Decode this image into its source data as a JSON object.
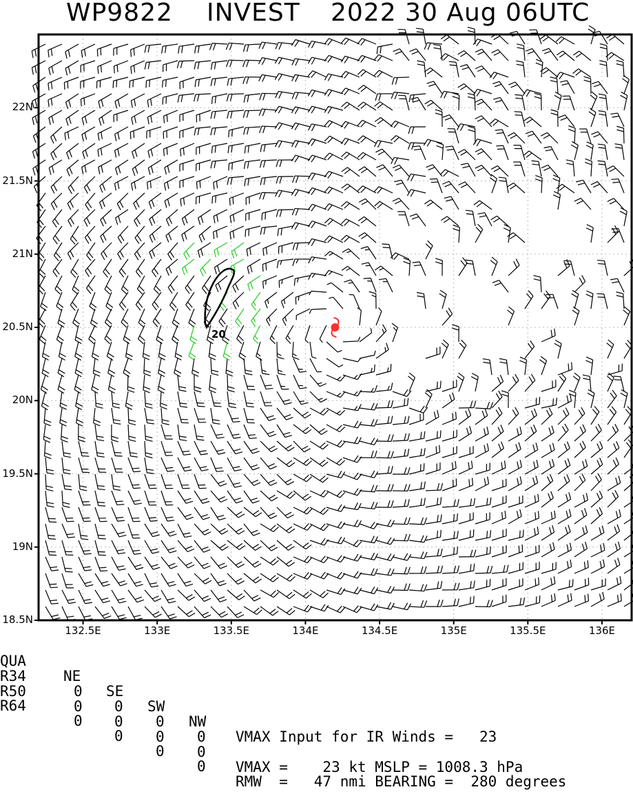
{
  "title": {
    "storm_id": "WP9822",
    "storm_name": "INVEST",
    "datetime": "2022 30 Aug 06UTC"
  },
  "map": {
    "lat_range": [
      18.5,
      22.5
    ],
    "lon_range": [
      132.2,
      136.2
    ],
    "y_ticks": [
      "22N",
      "21.5N",
      "21N",
      "20.5N",
      "20N",
      "19.5N",
      "19N",
      "18.5N"
    ],
    "x_ticks": [
      "132.5E",
      "133E",
      "133.5E",
      "134E",
      "134.5E",
      "135E",
      "135.5E",
      "136E"
    ],
    "center": {
      "lat": 20.5,
      "lon": 134.2
    },
    "center_color": "#ff3030",
    "barb_color": "#000000",
    "highlight_barb_color": "#22cc22",
    "contour_label": "20",
    "grid": true
  },
  "table": {
    "header": [
      "QUA",
      "NE",
      "SE",
      "SW",
      "NW"
    ],
    "rows": [
      {
        "label": "R34",
        "values": [
          "0",
          "0",
          "0",
          "0"
        ]
      },
      {
        "label": "R50",
        "values": [
          "0",
          "0",
          "0",
          "0"
        ]
      },
      {
        "label": "R64",
        "values": [
          "0",
          "0",
          "0",
          "0"
        ]
      }
    ],
    "info_line1": "VMAX Input for IR Winds =   23",
    "info_line2": "VMAX =    23 kt MSLP = 1008.3 hPa",
    "info_line3": "RMW  =   47 nmi BEARING =  280 degrees"
  }
}
